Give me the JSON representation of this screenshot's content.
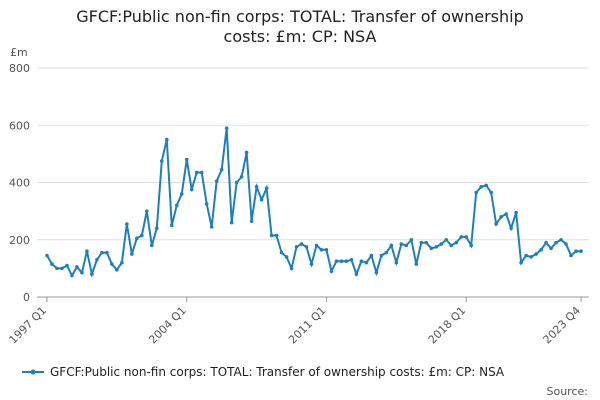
{
  "chart_data": {
    "type": "line",
    "title": [
      "GFCF:Public non-fin corps: TOTAL: Transfer of ownership",
      "costs: £m: CP: NSA"
    ],
    "y_unit": "£m",
    "source": "Source:",
    "categories": [
      "1997 Q1",
      null,
      null,
      null,
      null,
      null,
      null,
      null,
      null,
      null,
      null,
      null,
      null,
      null,
      null,
      null,
      null,
      null,
      null,
      null,
      null,
      null,
      null,
      null,
      null,
      null,
      null,
      null,
      "2004 Q1",
      null,
      null,
      null,
      null,
      null,
      null,
      null,
      null,
      null,
      null,
      null,
      null,
      null,
      null,
      null,
      null,
      null,
      null,
      null,
      null,
      null,
      null,
      null,
      null,
      null,
      null,
      null,
      "2011 Q1",
      null,
      null,
      null,
      null,
      null,
      null,
      null,
      null,
      null,
      null,
      null,
      null,
      null,
      null,
      null,
      null,
      null,
      null,
      null,
      null,
      null,
      null,
      null,
      null,
      null,
      null,
      null,
      "2018 Q1",
      null,
      null,
      null,
      null,
      null,
      null,
      null,
      null,
      null,
      null,
      null,
      null,
      null,
      null,
      null,
      null,
      null,
      null,
      null,
      null,
      null,
      null,
      "2023 Q4"
    ],
    "series": [
      {
        "name": "GFCF:Public non-fin corps: TOTAL: Transfer of ownership costs: £m: CP: NSA",
        "color": "#1f7fb8",
        "values": [
          145,
          115,
          100,
          100,
          110,
          75,
          105,
          85,
          160,
          80,
          130,
          155,
          155,
          115,
          95,
          120,
          255,
          150,
          205,
          215,
          300,
          180,
          240,
          475,
          550,
          250,
          320,
          360,
          480,
          375,
          435,
          435,
          325,
          245,
          405,
          445,
          590,
          260,
          400,
          420,
          505,
          265,
          385,
          340,
          380,
          215,
          215,
          155,
          140,
          100,
          175,
          185,
          175,
          115,
          180,
          165,
          165,
          90,
          125,
          125,
          125,
          130,
          80,
          125,
          120,
          145,
          85,
          145,
          155,
          180,
          120,
          185,
          180,
          200,
          115,
          190,
          190,
          170,
          175,
          185,
          200,
          180,
          190,
          210,
          210,
          180,
          365,
          385,
          390,
          365,
          255,
          280,
          290,
          240,
          295,
          120,
          145,
          140,
          150,
          165,
          190,
          170,
          190,
          200,
          185,
          145,
          160,
          160
        ]
      }
    ],
    "ylim": [
      0,
      800
    ],
    "yticks": [
      0,
      200,
      400,
      600,
      800
    ],
    "grid": true
  }
}
